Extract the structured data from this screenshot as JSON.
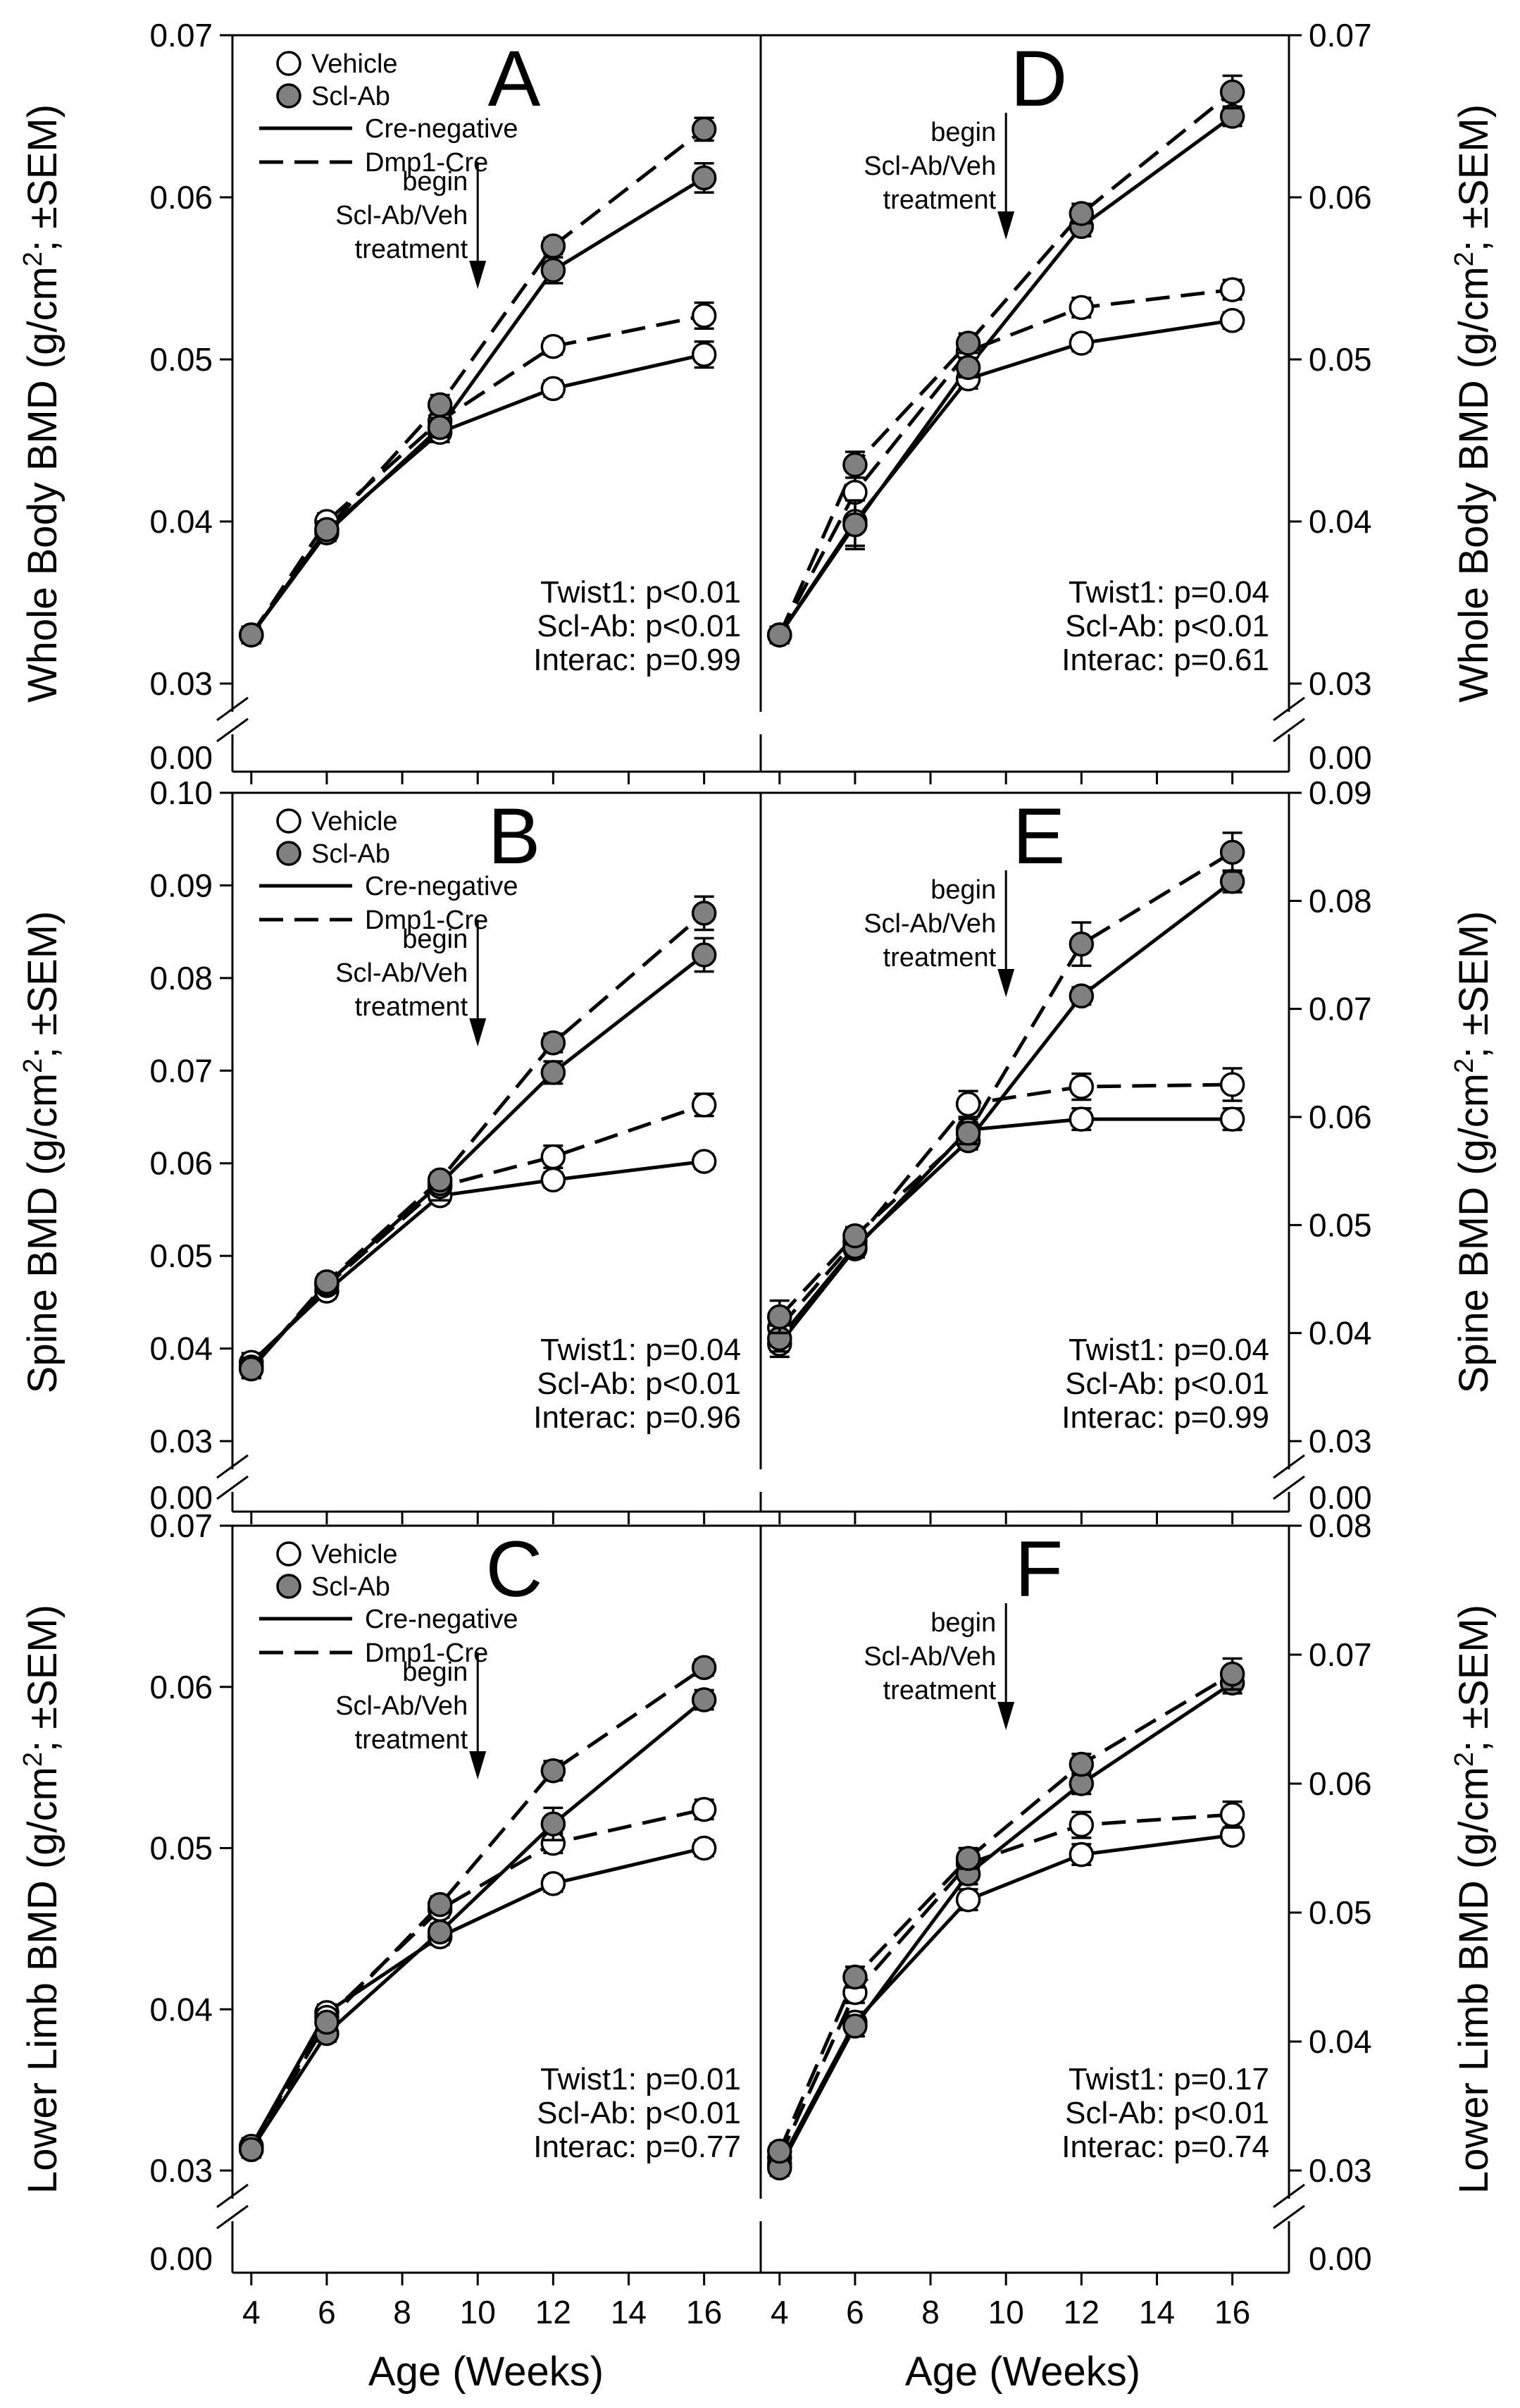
{
  "colors": {
    "vehicle_fill": "#ffffff",
    "sclab_fill": "#808080",
    "stroke": "#000000",
    "background": "#ffffff"
  },
  "xlabel": "Age (Weeks)",
  "legend": {
    "vehicle": "Vehicle",
    "sclab": "Scl-Ab",
    "cre_negative": "Cre-negative",
    "dmp1_cre": "Dmp1-Cre"
  },
  "annotation": [
    "begin",
    "Scl-Ab/Veh",
    "treatment"
  ],
  "chart_data": [
    {
      "panel": "A",
      "type": "line",
      "ylabel": "Whole Body BMD (g/cm²; ±SEM)",
      "y_axis_side": "left",
      "xticks": [
        4,
        6,
        8,
        10,
        12,
        14,
        16
      ],
      "xlim": [
        3.5,
        17.5
      ],
      "yticks": [
        "0.03",
        "0.04",
        "0.05",
        "0.06",
        "0.07"
      ],
      "ylim": [
        0.03,
        0.07
      ],
      "y_break_label": "0.00",
      "legend_shown": true,
      "annotation_shown": true,
      "stats": [
        "Twist1: p<0.01",
        "Scl-Ab: p<0.01",
        "Interac: p=0.99"
      ],
      "x": [
        4,
        6,
        9,
        12,
        16
      ],
      "series": [
        {
          "group": "Vehicle",
          "genotype": "Cre-negative",
          "values": [
            0.033,
            0.0395,
            0.0455,
            0.0482,
            0.0503
          ],
          "sem": [
            0.0005,
            0.0005,
            0.0006,
            0.0005,
            0.0008
          ]
        },
        {
          "group": "Vehicle",
          "genotype": "Dmp1-Cre",
          "values": [
            0.033,
            0.04,
            0.0462,
            0.0508,
            0.0527
          ],
          "sem": [
            0.0005,
            0.0005,
            0.0006,
            0.0005,
            0.0008
          ]
        },
        {
          "group": "Scl-Ab",
          "genotype": "Cre-negative",
          "values": [
            0.033,
            0.0393,
            0.0458,
            0.0555,
            0.0612
          ],
          "sem": [
            0.0005,
            0.0005,
            0.0006,
            0.0008,
            0.0009
          ]
        },
        {
          "group": "Scl-Ab",
          "genotype": "Dmp1-Cre",
          "values": [
            0.033,
            0.0395,
            0.0472,
            0.057,
            0.0642
          ],
          "sem": [
            0.0005,
            0.0005,
            0.0006,
            0.0005,
            0.0007
          ]
        }
      ]
    },
    {
      "panel": "B",
      "type": "line",
      "ylabel": "Spine BMD (g/cm²; ±SEM)",
      "y_axis_side": "left",
      "xticks": [
        4,
        6,
        8,
        10,
        12,
        14,
        16
      ],
      "xlim": [
        3.5,
        17.5
      ],
      "yticks": [
        "0.03",
        "0.04",
        "0.05",
        "0.06",
        "0.07",
        "0.08",
        "0.09",
        "0.10"
      ],
      "ylim": [
        0.03,
        0.1
      ],
      "y_break_label": "0.00",
      "legend_shown": true,
      "annotation_shown": true,
      "stats": [
        "Twist1: p=0.04",
        "Scl-Ab: p<0.01",
        "Interac: p=0.96"
      ],
      "x": [
        4,
        6,
        9,
        12,
        16
      ],
      "series": [
        {
          "group": "Vehicle",
          "genotype": "Cre-negative",
          "values": [
            0.0385,
            0.0462,
            0.0565,
            0.0582,
            0.0602
          ],
          "sem": [
            0.001,
            0.0008,
            0.0008,
            0.0008,
            0.0008
          ]
        },
        {
          "group": "Vehicle",
          "genotype": "Dmp1-Cre",
          "values": [
            0.038,
            0.0468,
            0.0575,
            0.0607,
            0.0663
          ],
          "sem": [
            0.001,
            0.0008,
            0.0015,
            0.0012,
            0.0012
          ]
        },
        {
          "group": "Scl-Ab",
          "genotype": "Cre-negative",
          "values": [
            0.0378,
            0.047,
            0.0578,
            0.0698,
            0.0825
          ],
          "sem": [
            0.001,
            0.0008,
            0.0008,
            0.0012,
            0.0018
          ]
        },
        {
          "group": "Scl-Ab",
          "genotype": "Dmp1-Cre",
          "values": [
            0.0378,
            0.0472,
            0.0582,
            0.073,
            0.087
          ],
          "sem": [
            0.001,
            0.0008,
            0.0008,
            0.001,
            0.0018
          ]
        }
      ]
    },
    {
      "panel": "C",
      "type": "line",
      "ylabel": "Lower Limb BMD (g/cm²; ±SEM)",
      "y_axis_side": "left",
      "xticks": [
        4,
        6,
        8,
        10,
        12,
        14,
        16
      ],
      "xlim": [
        3.5,
        17.5
      ],
      "yticks": [
        "0.03",
        "0.04",
        "0.05",
        "0.06",
        "0.07"
      ],
      "ylim": [
        0.03,
        0.07
      ],
      "y_break_label": "0.00",
      "legend_shown": true,
      "annotation_shown": true,
      "stats": [
        "Twist1: p=0.01",
        "Scl-Ab: p<0.01",
        "Interac: p=0.77"
      ],
      "x": [
        4,
        6,
        9,
        12,
        16
      ],
      "series": [
        {
          "group": "Vehicle",
          "genotype": "Cre-negative",
          "values": [
            0.0315,
            0.0398,
            0.0445,
            0.0478,
            0.05
          ],
          "sem": [
            0.0005,
            0.0005,
            0.0005,
            0.0005,
            0.0005
          ]
        },
        {
          "group": "Vehicle",
          "genotype": "Dmp1-Cre",
          "values": [
            0.0315,
            0.0395,
            0.0462,
            0.0503,
            0.0524
          ],
          "sem": [
            0.0005,
            0.0005,
            0.0005,
            0.0006,
            0.0006
          ]
        },
        {
          "group": "Scl-Ab",
          "genotype": "Cre-negative",
          "values": [
            0.0313,
            0.0385,
            0.0448,
            0.0515,
            0.0592
          ],
          "sem": [
            0.0005,
            0.0005,
            0.0005,
            0.001,
            0.0006
          ]
        },
        {
          "group": "Scl-Ab",
          "genotype": "Dmp1-Cre",
          "values": [
            0.0313,
            0.0392,
            0.0465,
            0.0548,
            0.0612
          ],
          "sem": [
            0.0005,
            0.0005,
            0.0005,
            0.0006,
            0.0005
          ]
        }
      ]
    },
    {
      "panel": "D",
      "type": "line",
      "ylabel": "Whole Body BMD (g/cm²; ±SEM)",
      "y_axis_side": "right",
      "xticks": [
        4,
        6,
        8,
        10,
        12,
        14,
        16
      ],
      "xlim": [
        3.5,
        17.5
      ],
      "yticks": [
        "0.03",
        "0.04",
        "0.05",
        "0.06",
        "0.07"
      ],
      "ylim": [
        0.03,
        0.07
      ],
      "y_break_label": "0.00",
      "legend_shown": false,
      "annotation_shown": true,
      "stats": [
        "Twist1: p=0.04",
        "Scl-Ab: p<0.01",
        "Interac: p=0.61"
      ],
      "x": [
        4,
        6,
        9,
        12,
        16
      ],
      "series": [
        {
          "group": "Vehicle",
          "genotype": "Cre-negative",
          "values": [
            0.033,
            0.04,
            0.0488,
            0.051,
            0.0524
          ],
          "sem": [
            0.0005,
            0.0015,
            0.0006,
            0.0005,
            0.0005
          ]
        },
        {
          "group": "Vehicle",
          "genotype": "Dmp1-Cre",
          "values": [
            0.033,
            0.0418,
            0.0505,
            0.0532,
            0.0543
          ],
          "sem": [
            0.0005,
            0.0015,
            0.0006,
            0.0006,
            0.0006
          ]
        },
        {
          "group": "Scl-Ab",
          "genotype": "Cre-negative",
          "values": [
            0.033,
            0.0398,
            0.0495,
            0.0582,
            0.065
          ],
          "sem": [
            0.0005,
            0.0015,
            0.0006,
            0.0006,
            0.0006
          ]
        },
        {
          "group": "Scl-Ab",
          "genotype": "Dmp1-Cre",
          "values": [
            0.033,
            0.0435,
            0.051,
            0.059,
            0.0665
          ],
          "sem": [
            0.0005,
            0.0008,
            0.0006,
            0.0006,
            0.001
          ]
        }
      ]
    },
    {
      "panel": "E",
      "type": "line",
      "ylabel": "Spine BMD (g/cm²; ±SEM)",
      "y_axis_side": "right",
      "xticks": [
        4,
        6,
        8,
        10,
        12,
        14,
        16
      ],
      "xlim": [
        3.5,
        17.5
      ],
      "yticks": [
        "0.03",
        "0.04",
        "0.05",
        "0.06",
        "0.07",
        "0.08",
        "0.09"
      ],
      "ylim": [
        0.03,
        0.09
      ],
      "y_break_label": "0.00",
      "legend_shown": false,
      "annotation_shown": true,
      "stats": [
        "Twist1: p=0.04",
        "Scl-Ab: p<0.01",
        "Interac: p=0.99"
      ],
      "x": [
        4,
        6,
        9,
        12,
        16
      ],
      "series": [
        {
          "group": "Vehicle",
          "genotype": "Cre-negative",
          "values": [
            0.039,
            0.0478,
            0.0588,
            0.0598,
            0.0598
          ],
          "sem": [
            0.0012,
            0.0008,
            0.001,
            0.001,
            0.001
          ]
        },
        {
          "group": "Vehicle",
          "genotype": "Dmp1-Cre",
          "values": [
            0.0405,
            0.0485,
            0.0612,
            0.0628,
            0.063
          ],
          "sem": [
            0.0012,
            0.0008,
            0.0012,
            0.0012,
            0.0015
          ]
        },
        {
          "group": "Scl-Ab",
          "genotype": "Cre-negative",
          "values": [
            0.0395,
            0.048,
            0.0578,
            0.0712,
            0.0818
          ],
          "sem": [
            0.0012,
            0.0008,
            0.0008,
            0.0008,
            0.001
          ]
        },
        {
          "group": "Scl-Ab",
          "genotype": "Dmp1-Cre",
          "values": [
            0.0415,
            0.049,
            0.0585,
            0.076,
            0.0845
          ],
          "sem": [
            0.0015,
            0.0008,
            0.001,
            0.002,
            0.0018
          ]
        }
      ]
    },
    {
      "panel": "F",
      "type": "line",
      "ylabel": "Lower Limb BMD (g/cm²; ±SEM)",
      "y_axis_side": "right",
      "xticks": [
        4,
        6,
        8,
        10,
        12,
        14,
        16
      ],
      "xlim": [
        3.5,
        17.5
      ],
      "yticks": [
        "0.03",
        "0.04",
        "0.05",
        "0.06",
        "0.07",
        "0.08"
      ],
      "ylim": [
        0.03,
        0.08
      ],
      "y_break_label": "0.00",
      "legend_shown": false,
      "annotation_shown": true,
      "stats": [
        "Twist1: p=0.17",
        "Scl-Ab: p<0.01",
        "Interac: p=0.74"
      ],
      "x": [
        4,
        6,
        9,
        12,
        16
      ],
      "series": [
        {
          "group": "Vehicle",
          "genotype": "Cre-negative",
          "values": [
            0.0305,
            0.0415,
            0.051,
            0.0545,
            0.056
          ],
          "sem": [
            0.0006,
            0.0008,
            0.0008,
            0.0008,
            0.0006
          ]
        },
        {
          "group": "Vehicle",
          "genotype": "Dmp1-Cre",
          "values": [
            0.031,
            0.0438,
            0.0538,
            0.0568,
            0.0576
          ],
          "sem": [
            0.0006,
            0.0008,
            0.0008,
            0.001,
            0.001
          ]
        },
        {
          "group": "Scl-Ab",
          "genotype": "Cre-negative",
          "values": [
            0.0302,
            0.0412,
            0.053,
            0.06,
            0.0678
          ],
          "sem": [
            0.0006,
            0.0008,
            0.0008,
            0.0008,
            0.0008
          ]
        },
        {
          "group": "Scl-Ab",
          "genotype": "Dmp1-Cre",
          "values": [
            0.0315,
            0.045,
            0.0542,
            0.0615,
            0.0685
          ],
          "sem": [
            0.0006,
            0.0008,
            0.0008,
            0.0008,
            0.0012
          ]
        }
      ]
    }
  ]
}
